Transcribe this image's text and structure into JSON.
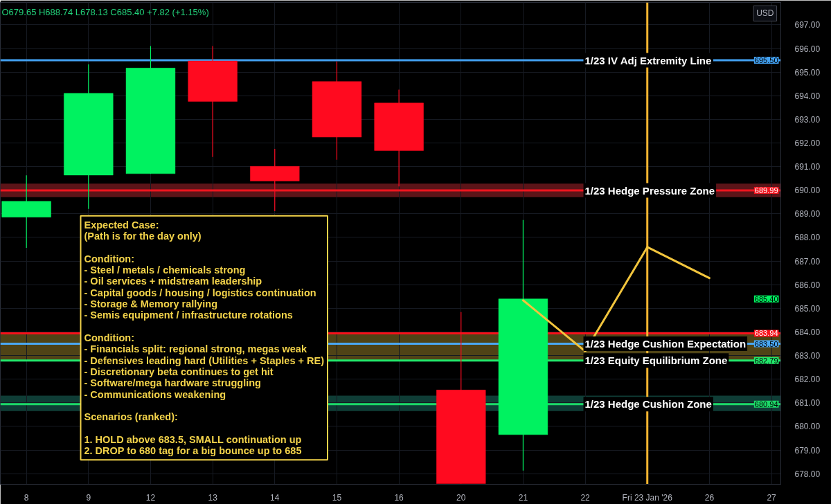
{
  "chart_data": {
    "type": "candlestick",
    "ylabel": "USD",
    "categories": [
      "8",
      "9",
      "12",
      "13",
      "14",
      "15",
      "16",
      "20",
      "21",
      "22",
      "Fri 23 Jan '26",
      "26",
      "27"
    ],
    "ohlc": [
      [
        688.86,
        690.63,
        687.56,
        689.53
      ],
      [
        690.64,
        695.33,
        689.21,
        694.1
      ],
      [
        690.7,
        696.1,
        690.7,
        695.17
      ],
      [
        695.47,
        696.1,
        691.41,
        693.76
      ],
      [
        691.01,
        691.75,
        689.11,
        690.39
      ],
      [
        694.6,
        695.45,
        691.29,
        692.25
      ],
      [
        693.69,
        694.26,
        690.16,
        691.68
      ],
      [
        681.54,
        684.84,
        677.58,
        677.58
      ],
      [
        679.65,
        688.74,
        678.13,
        685.4
      ],
      null,
      null,
      null,
      null
    ],
    "colors": [
      "#00f260",
      "#00f260",
      "#00f260",
      "#ff0a1f",
      "#ff0a1f",
      "#ff0a1f",
      "#ff0a1f",
      "#ff0a1f",
      "#00f260",
      null,
      null,
      null,
      null
    ],
    "series": [
      {
        "type": "line",
        "x": [
          "21",
          "22",
          "Fri 23 Jan '26",
          "26"
        ],
        "values": [
          685.34,
          683.18,
          687.59,
          686.28
        ],
        "color": "#f2c53d"
      }
    ],
    "ylim": [
      677.55,
      697.95
    ],
    "yticks": [
      {
        "value": 678,
        "label": "678.00"
      },
      {
        "value": 679,
        "label": "679.00"
      },
      {
        "value": 680,
        "label": "680.00"
      },
      {
        "value": 681,
        "label": "681.00"
      },
      {
        "value": 682,
        "label": "682.00"
      },
      {
        "value": 683,
        "label": "683.00"
      },
      {
        "value": 684,
        "label": "684.00"
      },
      {
        "value": 685,
        "label": "685.00"
      },
      {
        "value": 686,
        "label": "686.00"
      },
      {
        "value": 687,
        "label": "687.00"
      },
      {
        "value": 688,
        "label": "688.00"
      },
      {
        "value": 689,
        "label": "689.00"
      },
      {
        "value": 690,
        "label": "690.00"
      },
      {
        "value": 691,
        "label": "691.00"
      },
      {
        "value": 692,
        "label": "692.00"
      },
      {
        "value": 693,
        "label": "693.00"
      },
      {
        "value": 694,
        "label": "694.00"
      },
      {
        "value": 695,
        "label": "695.00"
      },
      {
        "value": 696,
        "label": "696.00"
      },
      {
        "value": 697,
        "label": "697.00"
      }
    ],
    "grid": true,
    "ref_lines": [
      {
        "axis": "y",
        "value": 695.5,
        "label": "1/23 IV Adj Extremity Line",
        "color": "#42a0f0"
      },
      {
        "axis": "y",
        "value": 689.99,
        "label": "1/23 Hedge Pressure Zone",
        "color": "#f0141e"
      },
      {
        "axis": "y",
        "value": 683.94,
        "color": "#f8101a"
      },
      {
        "axis": "y",
        "value": 683.5,
        "label": "1/23 Hedge Cushion Expectation",
        "color": "#4aa8f4"
      },
      {
        "axis": "y",
        "value": 682.79,
        "label": "1/23 Equity Equilibrium Zone",
        "color": "#22e86b"
      },
      {
        "axis": "y",
        "value": 680.94,
        "label": "1/23 Hedge Cushion Zone",
        "color": "#1cd868"
      },
      {
        "axis": "x",
        "value": "Fri 23 Jan '26",
        "color": "#f7b531"
      }
    ],
    "bands": [
      {
        "axis": "y",
        "from": 689.71,
        "to": 690.28,
        "color": "#5c1418"
      },
      {
        "axis": "y",
        "from": 682.79,
        "to": 683.94,
        "color": "#4f4316"
      },
      {
        "axis": "y",
        "from": 680.65,
        "to": 681.3,
        "color": "#0f3d36"
      }
    ],
    "annotations": [
      "O679.65 H688.74 L678.13 C685.40 +7.82 (+1.15%)",
      "Expected Case:\n(Path is for the day only)\n\nCondition:\n- Steel / metals / chemicals strong\n- Oil services + midstream leadership\n- Capital goods / housing / logistics continuation\n- Storage & Memory rallying\n- Semis equipment / infrastructure rotations\n\nCondition:\n- Financials split: regional strong, megas weak\n- Defensives leading hard (Utilities + Staples + RE)\n- Discretionary beta continues to get hit\n- Software/mega hardware struggling\n- Communications weakening\n\nScenarios (ranked):\n\n1. HOLD above 683.5, SMALL continuation up\n2. DROP to 680 tag for a big bounce up to 685",
      "685.40",
      {
        "text": "695.50",
        "y": 695.5
      },
      {
        "text": "689.99",
        "y": 689.99
      },
      {
        "text": "683.94",
        "y": 683.94
      },
      {
        "text": "683.50",
        "y": 683.5
      },
      {
        "text": "682.79",
        "y": 682.79
      },
      {
        "text": "680.94",
        "y": 680.94
      }
    ]
  }
}
